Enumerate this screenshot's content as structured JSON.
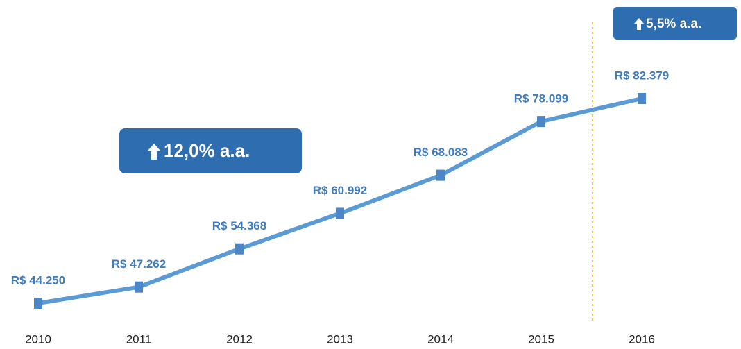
{
  "chart_data": {
    "type": "line",
    "categories": [
      "2010",
      "2011",
      "2012",
      "2013",
      "2014",
      "2015",
      "2016"
    ],
    "series": [
      {
        "color": "#5b9bd5",
        "marker_color": "#4a86c8",
        "values": [
          44250,
          47262,
          54368,
          60992,
          68083,
          78099,
          82379
        ],
        "value_labels": [
          "R$ 44.250",
          "R$ 47.262",
          "R$ 54.368",
          "R$ 60.992",
          "R$ 68.083",
          "R$ 78.099",
          "R$ 82.379"
        ]
      }
    ],
    "annotations": [
      {
        "text": "12,0% a.a."
      },
      {
        "text": "5,5% a.a."
      }
    ]
  }
}
